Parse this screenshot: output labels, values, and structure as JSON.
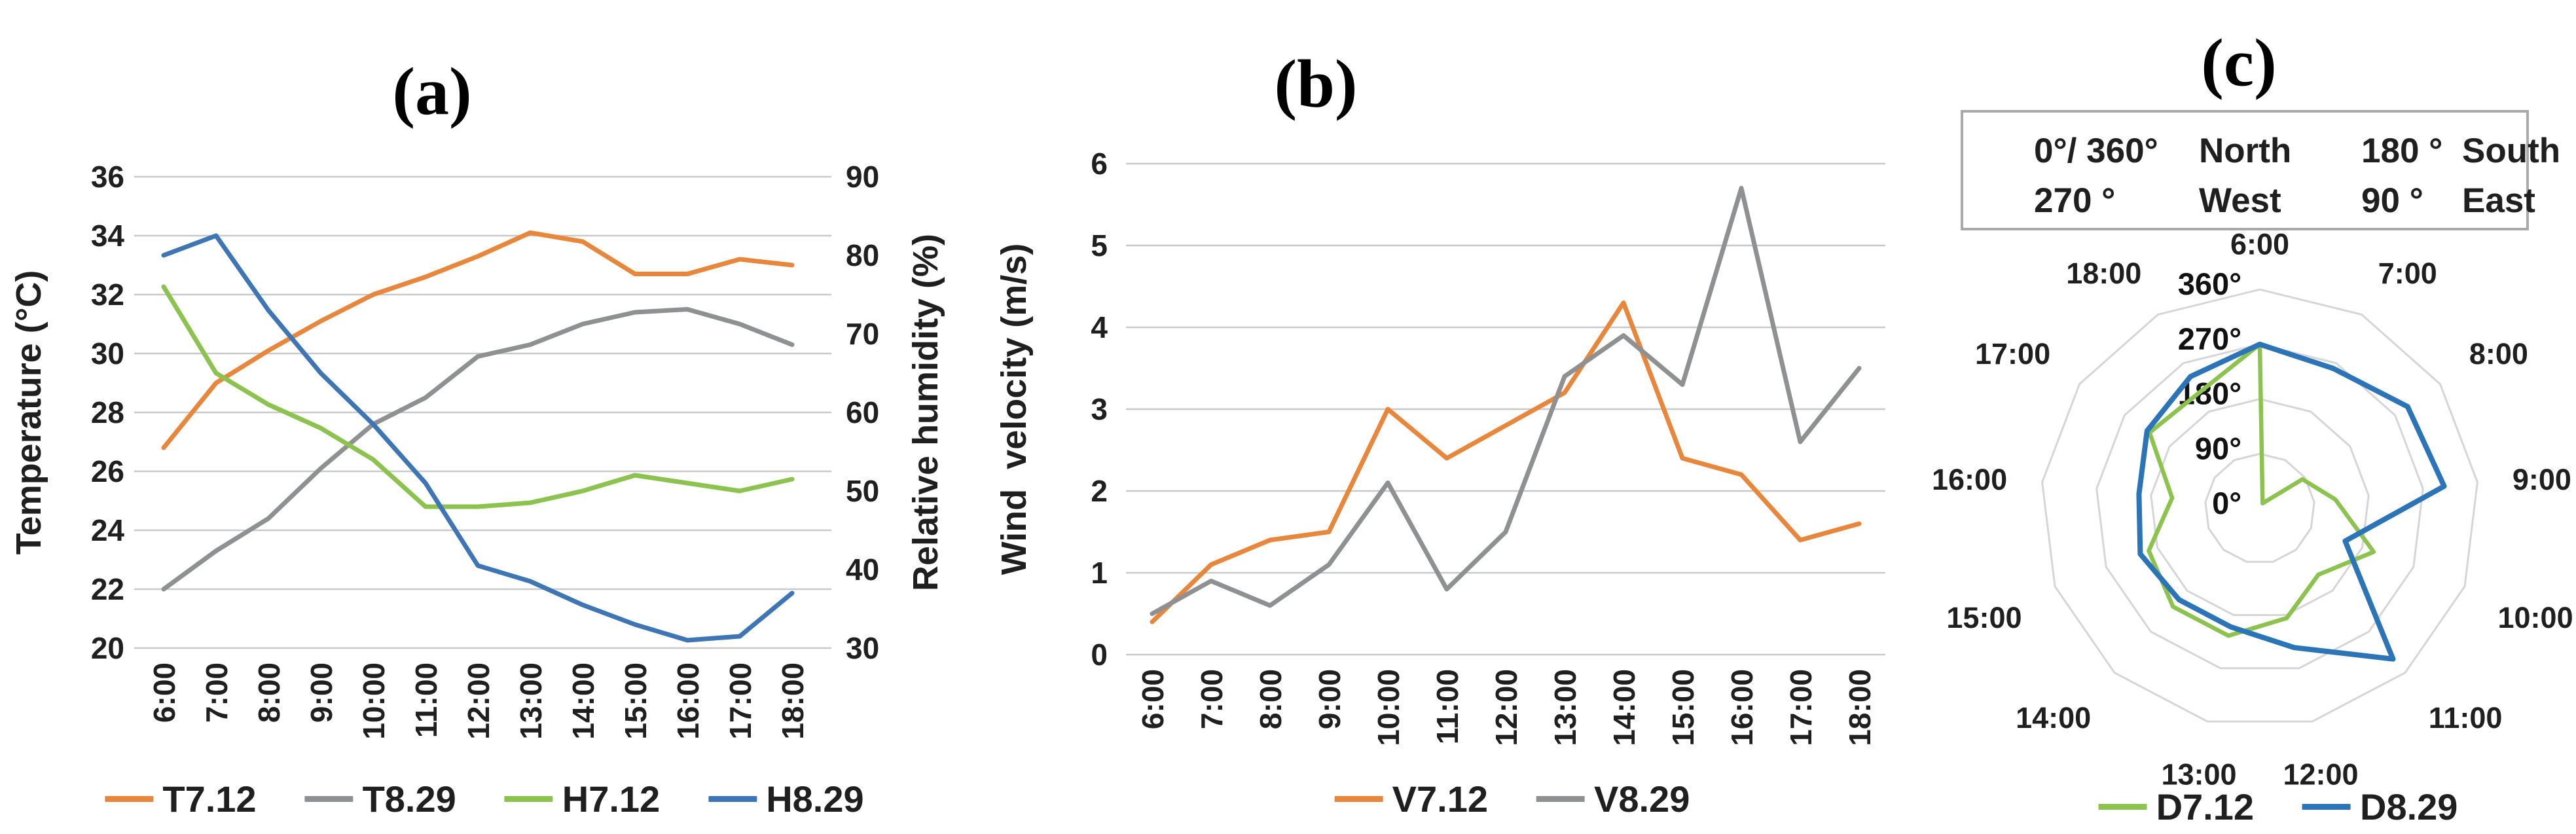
{
  "figure": {
    "panel_titles": {
      "a": "(a)",
      "b": "(b)",
      "c": "(c)"
    },
    "colors": {
      "orange": "#E8873B",
      "gray": "#8E9092",
      "green": "#8CC34E",
      "blue": "#3E76B5",
      "radar_blue": "#2B74B8",
      "gridline": "#C9C9C9",
      "radar_ring": "#D6D6D6",
      "text": "#1F1F1F"
    }
  },
  "chart_data": [
    {
      "id": "a",
      "type": "line",
      "title": "(a)",
      "categories": [
        "6:00",
        "7:00",
        "8:00",
        "9:00",
        "10:00",
        "11:00",
        "12:00",
        "13:00",
        "14:00",
        "15:00",
        "16:00",
        "17:00",
        "18:00"
      ],
      "ylabel_left": "Temperature (°C)",
      "ylabel_right": "Relative humidity (%)",
      "ylim_left": [
        20,
        36
      ],
      "ytick_step_left": 2,
      "ylim_right": [
        30,
        90
      ],
      "ytick_step_right": 10,
      "grid": true,
      "legend_position": "bottom",
      "series": [
        {
          "name": "T7.12",
          "axis": "left",
          "color": "#E8873B",
          "values": [
            26.8,
            29.0,
            30.1,
            31.1,
            32.0,
            32.6,
            33.3,
            34.1,
            33.8,
            32.7,
            32.7,
            33.2,
            33.0
          ]
        },
        {
          "name": "T8.29",
          "axis": "left",
          "color": "#8E9092",
          "values": [
            22.0,
            23.3,
            24.4,
            26.1,
            27.6,
            28.5,
            29.9,
            30.3,
            31.0,
            31.4,
            31.5,
            31.0,
            30.3
          ]
        },
        {
          "name": "H7.12",
          "axis": "right",
          "color": "#8CC34E",
          "values": [
            76,
            65,
            61,
            58,
            54,
            48,
            48,
            48.5,
            50,
            52,
            51,
            50,
            51.5
          ]
        },
        {
          "name": "H8.29",
          "axis": "right",
          "color": "#3E76B5",
          "values": [
            80,
            82.5,
            73,
            65,
            58.5,
            51,
            40.5,
            38.5,
            35.5,
            33,
            31,
            31.5,
            37
          ]
        }
      ]
    },
    {
      "id": "b",
      "type": "line",
      "title": "(b)",
      "categories": [
        "6:00",
        "7:00",
        "8:00",
        "9:00",
        "10:00",
        "11:00",
        "12:00",
        "13:00",
        "14:00",
        "15:00",
        "16:00",
        "17:00",
        "18:00"
      ],
      "ylabel_left": "Wind  velocity (m/s)",
      "ylim_left": [
        0,
        6
      ],
      "ytick_step_left": 1,
      "grid": true,
      "legend_position": "bottom",
      "series": [
        {
          "name": "V7.12",
          "axis": "left",
          "color": "#E8873B",
          "values": [
            0.4,
            1.1,
            1.4,
            1.5,
            3.0,
            2.4,
            2.8,
            3.2,
            4.3,
            2.4,
            2.2,
            1.4,
            1.6
          ]
        },
        {
          "name": "V8.29",
          "axis": "left",
          "color": "#8E9092",
          "values": [
            0.5,
            0.9,
            0.6,
            1.1,
            2.1,
            0.8,
            1.5,
            3.4,
            3.9,
            3.3,
            5.7,
            2.6,
            3.5
          ]
        }
      ]
    },
    {
      "id": "c",
      "type": "radar",
      "title": "(c)",
      "categories": [
        "6:00",
        "7:00",
        "8:00",
        "9:00",
        "10:00",
        "11:00",
        "12:00",
        "13:00",
        "14:00",
        "15:00",
        "16:00",
        "17:00",
        "18:00"
      ],
      "rlim": [
        0,
        360
      ],
      "rings": [
        90,
        180,
        270,
        360
      ],
      "radial_labels": [
        "0°",
        "90°",
        "180°",
        "270°",
        "360°"
      ],
      "grid": true,
      "legend_position": "bottom",
      "direction_key": {
        "cells": [
          {
            "deg": "0°/ 360°",
            "dir": "North"
          },
          {
            "deg": "180 °",
            "dir": "South"
          },
          {
            "deg": "270 °",
            "dir": "West"
          },
          {
            "deg": "90 °",
            "dir": "East"
          }
        ]
      },
      "series": [
        {
          "name": "D7.12",
          "color": "#8CC34E",
          "values": [
            270,
            10,
            85,
            125,
            200,
            145,
            185,
            215,
            215,
            195,
            145,
            220,
            215
          ]
        },
        {
          "name": "D8.29",
          "color": "#2B74B8",
          "values": [
            270,
            260,
            295,
            305,
            150,
            330,
            235,
            200,
            200,
            210,
            200,
            225,
            245
          ]
        }
      ]
    }
  ]
}
